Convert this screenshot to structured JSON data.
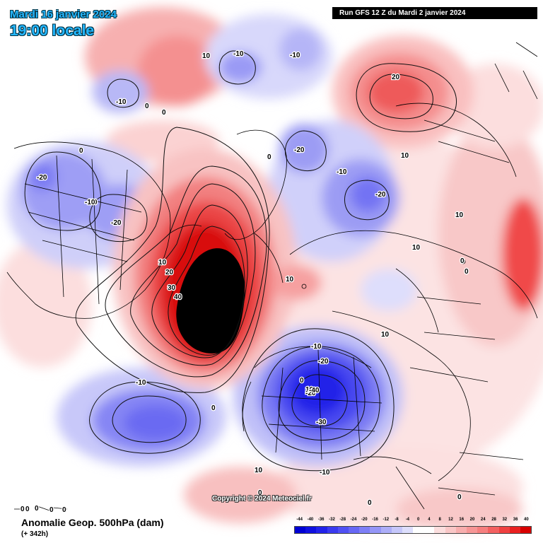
{
  "header": {
    "date_line": "Mardi 16 janvier 2024",
    "time_line": "19:00 locale",
    "run_banner": "Run GFS 12 Z du Mardi 2 janvier 2024"
  },
  "footer": {
    "title": "Anomalie Geop. 500hPa (dam)",
    "subtitle": "(+ 342h)",
    "copyright": "Copyright © 2024 Meteociel.fr"
  },
  "scale": {
    "labels": [
      "-44",
      "-40",
      "-36",
      "-32",
      "-28",
      "-24",
      "-20",
      "-16",
      "-12",
      "-8",
      "-4",
      "0",
      "4",
      "8",
      "12",
      "16",
      "20",
      "24",
      "28",
      "32",
      "36",
      "40"
    ],
    "colors": [
      "#0000d4",
      "#1010e0",
      "#2222ea",
      "#3a3af0",
      "#5050f4",
      "#6767f5",
      "#7e7ef6",
      "#9595f7",
      "#adadf8",
      "#c6c6fa",
      "#dedefc",
      "#ffffff",
      "#ffffff",
      "#fcdede",
      "#fac6c6",
      "#f8adad",
      "#f79595",
      "#f67e7e",
      "#f46060",
      "#f04040",
      "#ea2020",
      "#d80000"
    ]
  },
  "contour_labels": [
    {
      "text": "10",
      "id": "c01"
    },
    {
      "text": "-10",
      "id": "c02"
    },
    {
      "text": "-10",
      "id": "c03"
    },
    {
      "text": "-10",
      "id": "c04"
    },
    {
      "text": "0",
      "id": "c05"
    },
    {
      "text": "0",
      "id": "c06"
    },
    {
      "text": "20",
      "id": "c07"
    },
    {
      "text": "0",
      "id": "c08"
    },
    {
      "text": "-20",
      "id": "c09"
    },
    {
      "text": "-10",
      "id": "c10"
    },
    {
      "text": "-20",
      "id": "c11"
    },
    {
      "text": "10",
      "id": "c12"
    },
    {
      "text": "-20",
      "id": "c13"
    },
    {
      "text": "-10",
      "id": "c14"
    },
    {
      "text": "-20",
      "id": "c15"
    },
    {
      "text": "0",
      "id": "c16"
    },
    {
      "text": "10",
      "id": "c17"
    },
    {
      "text": "10",
      "id": "c18"
    },
    {
      "text": "20",
      "id": "c19"
    },
    {
      "text": "30",
      "id": "c20"
    },
    {
      "text": "40",
      "id": "c21"
    },
    {
      "text": "10",
      "id": "c22"
    },
    {
      "text": "10",
      "id": "c23"
    },
    {
      "text": "0",
      "id": "c24"
    },
    {
      "text": "0",
      "id": "c25"
    },
    {
      "text": "10",
      "id": "c26"
    },
    {
      "text": "-10",
      "id": "c27"
    },
    {
      "text": "-20",
      "id": "c28"
    },
    {
      "text": "0",
      "id": "c29"
    },
    {
      "text": "10",
      "id": "c30"
    },
    {
      "text": "-20",
      "id": "c31"
    },
    {
      "text": "-40",
      "id": "c32"
    },
    {
      "text": "-30",
      "id": "c33"
    },
    {
      "text": "-10",
      "id": "c34"
    },
    {
      "text": "-10",
      "id": "c35"
    },
    {
      "text": "0",
      "id": "c36"
    },
    {
      "text": "-10",
      "id": "c37"
    },
    {
      "text": "0",
      "id": "c38"
    },
    {
      "text": "0",
      "id": "c39"
    },
    {
      "text": "0",
      "id": "c40"
    },
    {
      "text": "0",
      "id": "c41"
    },
    {
      "text": "0",
      "id": "c42"
    },
    {
      "text": "0",
      "id": "c43"
    },
    {
      "text": "0",
      "id": "c44"
    },
    {
      "text": "0",
      "id": "c45"
    },
    {
      "text": "10",
      "id": "c46"
    }
  ]
}
